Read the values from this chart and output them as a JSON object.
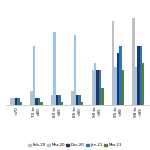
{
  "categories": [
    "<70",
    "70 to\n<80",
    "80 to\n<85",
    "85 to\n<90",
    "90 to\n<95",
    "95 to\n<98",
    "98 to\n<99"
  ],
  "series": {
    "Feb-20": [
      1.0,
      2.0,
      1.5,
      2.0,
      5.0,
      12.0,
      12.5
    ],
    "Mar-20": [
      1.0,
      8.5,
      10.5,
      10.0,
      6.0,
      5.5,
      5.5
    ],
    "Dec-20": [
      1.0,
      1.0,
      1.5,
      1.5,
      5.0,
      7.5,
      8.5
    ],
    "Jan-21": [
      1.0,
      1.0,
      1.5,
      1.5,
      5.0,
      8.5,
      8.5
    ],
    "Mar-21": [
      0.5,
      0.5,
      0.5,
      0.5,
      2.5,
      5.0,
      6.0
    ]
  },
  "colors": {
    "Feb-20": "#bfbfbf",
    "Mar-20": "#9dc3e6",
    "Dec-20": "#203864",
    "Jan-21": "#2e75b6",
    "Mar-21": "#548235"
  },
  "legend_order": [
    "Feb-20",
    "Mar-20",
    "Dec-20",
    "Jan-21",
    "Mar-21"
  ],
  "background_color": "#ffffff",
  "figsize": [
    1.5,
    1.5
  ],
  "dpi": 100
}
